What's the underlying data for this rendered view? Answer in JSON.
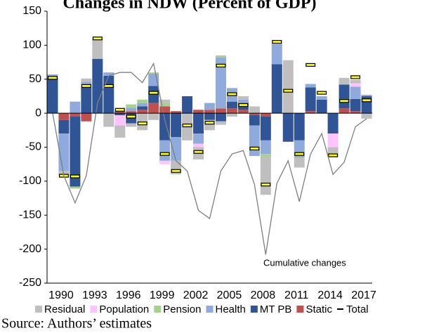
{
  "chart_data": {
    "type": "bar",
    "stacked": true,
    "title": "Changes in NDW (Percent of GDP)",
    "source": "Source: Authors’ estimates",
    "categories": [
      "1990",
      null,
      null,
      "1993",
      null,
      null,
      "1996",
      null,
      null,
      "1999",
      null,
      null,
      "2002",
      null,
      null,
      "2005",
      null,
      null,
      "2008",
      null,
      null,
      "2011",
      null,
      null,
      "2014",
      null,
      null,
      "2017",
      null
    ],
    "ylim": [
      -250,
      150
    ],
    "yticks": [
      -250,
      -200,
      -150,
      -100,
      -50,
      0,
      50,
      100,
      150
    ],
    "grid": false,
    "legend": "bottom",
    "series": [
      {
        "name": "Residual",
        "color": "#bfbfbf",
        "values": [
          0,
          -7,
          0,
          5,
          30,
          -20,
          -18,
          -5,
          -25,
          -10,
          5,
          -20,
          -40,
          -18,
          -15,
          -5,
          -5,
          5,
          10,
          -55,
          0,
          78,
          -15,
          0,
          0,
          -15,
          10,
          5,
          -8
        ]
      },
      {
        "name": "Population",
        "color": "#ffc4ff",
        "values": [
          0,
          0,
          0,
          0,
          0,
          0,
          -15,
          0,
          0,
          0,
          -5,
          0,
          0,
          -5,
          0,
          0,
          0,
          0,
          0,
          0,
          5,
          0,
          0,
          0,
          0,
          -20,
          0,
          5,
          0
        ]
      },
      {
        "name": "Pension",
        "color": "#a9d18e",
        "values": [
          0,
          0,
          -3,
          0,
          0,
          0,
          0,
          5,
          5,
          2,
          5,
          0,
          0,
          0,
          0,
          3,
          0,
          0,
          0,
          -5,
          0,
          0,
          0,
          0,
          0,
          0,
          0,
          0,
          0
        ]
      },
      {
        "name": "Health",
        "color": "#8faadc",
        "values": [
          5,
          -55,
          17,
          8,
          0,
          5,
          0,
          5,
          5,
          18,
          -30,
          -35,
          0,
          -15,
          10,
          75,
          20,
          5,
          -45,
          -20,
          30,
          0,
          -25,
          5,
          5,
          0,
          0,
          18,
          2
        ]
      },
      {
        "name": "MT PB",
        "color": "#2f5597",
        "values": [
          52,
          -20,
          -103,
          38,
          80,
          55,
          -3,
          -15,
          5,
          25,
          -40,
          -35,
          25,
          -30,
          -10,
          -12,
          10,
          10,
          -15,
          -35,
          72,
          -42,
          -40,
          35,
          20,
          -30,
          35,
          18,
          25
        ]
      },
      {
        "name": "Static",
        "color": "#c0504d",
        "values": [
          0,
          -10,
          -5,
          -12,
          0,
          0,
          3,
          3,
          5,
          15,
          10,
          3,
          0,
          5,
          5,
          7,
          7,
          5,
          -3,
          -5,
          0,
          0,
          0,
          3,
          0,
          0,
          7,
          3,
          0
        ]
      },
      {
        "name": "Total",
        "type": "marker",
        "color": "#ffff00",
        "values": [
          52,
          -92,
          -93,
          40,
          110,
          40,
          5,
          -5,
          -15,
          30,
          -60,
          -85,
          -18,
          -57,
          -14,
          70,
          28,
          12,
          -52,
          -105,
          105,
          33,
          -60,
          71,
          30,
          -62,
          18,
          53,
          19
        ]
      },
      {
        "name": "Cumulative changes",
        "type": "line",
        "color": "#7f7f7f",
        "values": [
          0,
          -92,
          -132,
          -92,
          15,
          55,
          60,
          60,
          45,
          73,
          -10,
          -70,
          -85,
          -143,
          -155,
          -85,
          -60,
          -55,
          -105,
          -208,
          -103,
          -70,
          -130,
          -60,
          -30,
          -90,
          -72,
          -20,
          -8
        ]
      }
    ]
  }
}
